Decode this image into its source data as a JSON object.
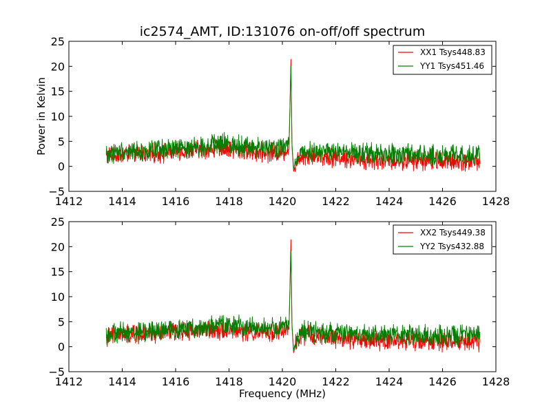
{
  "chart_data": [
    {
      "type": "line",
      "title": "ic2574_AMT, ID:131076 on-off/off spectrum",
      "xlabel": "",
      "ylabel": "Power in Kelvin",
      "xlim": [
        1412,
        1428
      ],
      "ylim": [
        -5,
        25
      ],
      "xticks": [
        "1412",
        "1414",
        "1416",
        "1418",
        "1420",
        "1422",
        "1424",
        "1426",
        "1428"
      ],
      "yticks": [
        "−5",
        "0",
        "5",
        "10",
        "15",
        "20",
        "25"
      ],
      "legend_position": "top-right",
      "series": [
        {
          "name": "XX1 Tsys448.83",
          "color": "#ff0000",
          "x": [
            1413.4,
            1414.0,
            1414.5,
            1415.0,
            1415.5,
            1416.0,
            1416.5,
            1417.0,
            1417.5,
            1418.0,
            1418.5,
            1419.0,
            1419.5,
            1420.0,
            1420.25,
            1420.32,
            1420.36,
            1420.42,
            1420.5,
            1420.7,
            1421.0,
            1421.5,
            1422.0,
            1422.5,
            1423.0,
            1423.5,
            1424.0,
            1424.5,
            1425.0,
            1425.5,
            1426.0,
            1426.5,
            1427.0,
            1427.4
          ],
          "values": [
            2.0,
            2.5,
            2.6,
            2.5,
            2.7,
            3.0,
            3.2,
            3.4,
            3.6,
            3.5,
            3.2,
            2.8,
            2.8,
            3.0,
            3.4,
            21.4,
            4.0,
            -1.0,
            0.5,
            2.3,
            2.2,
            2.0,
            1.8,
            1.5,
            1.3,
            1.2,
            1.2,
            1.2,
            1.2,
            1.1,
            1.1,
            1.0,
            1.0,
            1.0
          ]
        },
        {
          "name": "YY1 Tsys451.46",
          "color": "#008000",
          "x": [
            1413.4,
            1414.0,
            1414.5,
            1415.0,
            1415.5,
            1416.0,
            1416.5,
            1417.0,
            1417.5,
            1418.0,
            1418.5,
            1419.0,
            1419.5,
            1420.0,
            1420.25,
            1420.32,
            1420.36,
            1420.42,
            1420.5,
            1420.7,
            1421.0,
            1421.5,
            1422.0,
            1422.5,
            1423.0,
            1423.5,
            1424.0,
            1424.5,
            1425.0,
            1425.5,
            1426.0,
            1426.5,
            1427.0,
            1427.4
          ],
          "values": [
            2.5,
            3.0,
            3.0,
            3.0,
            3.2,
            3.5,
            3.8,
            4.0,
            4.3,
            4.5,
            4.2,
            3.8,
            3.6,
            3.8,
            4.4,
            20.0,
            4.5,
            -0.5,
            1.2,
            3.0,
            3.0,
            3.0,
            2.8,
            2.6,
            2.5,
            2.4,
            2.4,
            2.4,
            2.3,
            2.3,
            2.2,
            2.2,
            2.2,
            2.3
          ]
        }
      ]
    },
    {
      "type": "line",
      "title": "",
      "xlabel": "Frequency (MHz)",
      "ylabel": "",
      "xlim": [
        1412,
        1428
      ],
      "ylim": [
        -5,
        25
      ],
      "xticks": [
        "1412",
        "1414",
        "1416",
        "1418",
        "1420",
        "1422",
        "1424",
        "1426",
        "1428"
      ],
      "yticks": [
        "−5",
        "0",
        "5",
        "10",
        "15",
        "20",
        "25"
      ],
      "legend_position": "top-right",
      "series": [
        {
          "name": "XX2 Tsys449.38",
          "color": "#ff0000",
          "x": [
            1413.4,
            1414.0,
            1414.5,
            1415.0,
            1415.5,
            1416.0,
            1416.5,
            1417.0,
            1417.5,
            1418.0,
            1418.5,
            1419.0,
            1419.5,
            1420.0,
            1420.25,
            1420.32,
            1420.36,
            1420.42,
            1420.5,
            1420.7,
            1421.0,
            1421.5,
            1422.0,
            1422.5,
            1423.0,
            1423.5,
            1424.0,
            1424.5,
            1425.0,
            1425.5,
            1426.0,
            1426.5,
            1427.0,
            1427.4
          ],
          "values": [
            2.0,
            2.4,
            2.5,
            2.5,
            2.7,
            3.0,
            3.1,
            3.3,
            3.5,
            3.4,
            3.1,
            2.8,
            2.8,
            3.0,
            3.5,
            21.4,
            4.0,
            -1.2,
            0.5,
            2.3,
            2.2,
            2.0,
            1.8,
            1.5,
            1.3,
            1.2,
            1.2,
            1.2,
            1.1,
            1.1,
            1.0,
            1.0,
            1.0,
            1.0
          ]
        },
        {
          "name": "YY2 Tsys432.88",
          "color": "#008000",
          "x": [
            1413.4,
            1414.0,
            1414.5,
            1415.0,
            1415.5,
            1416.0,
            1416.5,
            1417.0,
            1417.5,
            1418.0,
            1418.5,
            1419.0,
            1419.5,
            1420.0,
            1420.25,
            1420.32,
            1420.36,
            1420.42,
            1420.5,
            1420.7,
            1421.0,
            1421.5,
            1422.0,
            1422.5,
            1423.0,
            1423.5,
            1424.0,
            1424.5,
            1425.0,
            1425.5,
            1426.0,
            1426.5,
            1427.0,
            1427.4
          ],
          "values": [
            2.4,
            2.9,
            3.0,
            3.0,
            3.2,
            3.4,
            3.7,
            3.9,
            4.2,
            4.4,
            4.1,
            3.8,
            3.6,
            3.9,
            4.5,
            19.0,
            4.5,
            -0.8,
            1.2,
            3.0,
            3.0,
            2.9,
            2.8,
            2.6,
            2.5,
            2.4,
            2.4,
            2.3,
            2.3,
            2.3,
            2.2,
            2.2,
            2.2,
            2.3
          ]
        }
      ]
    }
  ]
}
